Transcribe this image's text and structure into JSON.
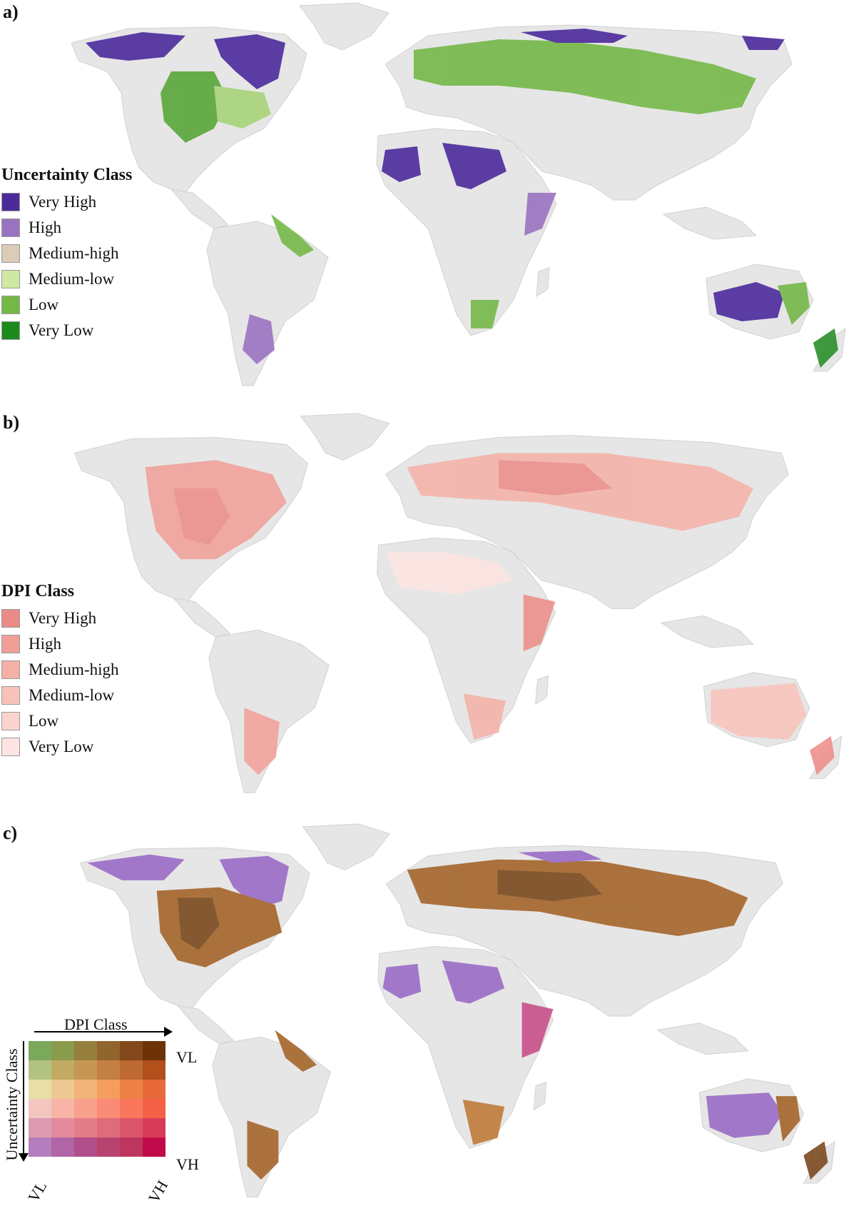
{
  "panels": [
    {
      "label": "a)",
      "legend": {
        "title": "Uncertainty Class",
        "items": [
          {
            "label": "Very High",
            "color": "#4b2a9c"
          },
          {
            "label": "High",
            "color": "#9a73c0"
          },
          {
            "label": "Medium-high",
            "color": "#dccbb6"
          },
          {
            "label": "Medium-low",
            "color": "#cfe8a3"
          },
          {
            "label": "Low",
            "color": "#74b848"
          },
          {
            "label": "Very Low",
            "color": "#1d8a1d"
          }
        ]
      }
    },
    {
      "label": "b)",
      "legend": {
        "title": "DPI Class",
        "items": [
          {
            "label": "Very High",
            "color": "#ec8a86"
          },
          {
            "label": "High",
            "color": "#f19e97"
          },
          {
            "label": "Medium-high",
            "color": "#f5b0a6"
          },
          {
            "label": "Medium-low",
            "color": "#f8c2b9"
          },
          {
            "label": "Low",
            "color": "#fbd3cd"
          },
          {
            "label": "Very Low",
            "color": "#fde4e2"
          }
        ]
      }
    },
    {
      "label": "c)",
      "bivariate_legend": {
        "x_title": "DPI Class",
        "y_title": "Uncertainty Class",
        "corner_top_right": "VL",
        "corner_bottom_right": "VH",
        "corner_bottom_left": "VL",
        "corner_bottom_right_x": "VH",
        "grid": [
          [
            "#7aa95c",
            "#8a9c4c",
            "#977f3e",
            "#91652e",
            "#82481b",
            "#6e3208"
          ],
          [
            "#b2c283",
            "#c1aa62",
            "#c69753",
            "#c47f42",
            "#bd6a33",
            "#b24f1b"
          ],
          [
            "#e8dea6",
            "#eec893",
            "#f2b47a",
            "#f49d5e",
            "#ee8045",
            "#e86a3b"
          ],
          [
            "#f3c6c0",
            "#f7b4a7",
            "#f9a08d",
            "#fa8b76",
            "#fa775e",
            "#f46147"
          ],
          [
            "#dc9bb0",
            "#e38a9c",
            "#e27d88",
            "#de6c7a",
            "#da566a",
            "#d73c58"
          ],
          [
            "#b47dbd",
            "#b164a6",
            "#b14f8a",
            "#b6446f",
            "#be3660",
            "#c10a4a"
          ]
        ]
      }
    }
  ],
  "colors": {
    "land": "#e6e6e6",
    "border": "#cfcfcf",
    "c_brown": "#a4652a",
    "c_brown_dark": "#7a4a1e",
    "c_purple": "#9a6dc6"
  }
}
